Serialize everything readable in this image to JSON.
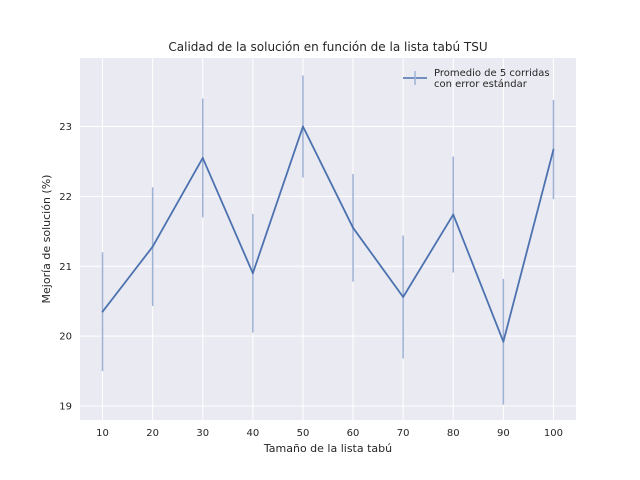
{
  "chart_data": {
    "type": "line",
    "title": "Calidad de la solución en función de la lista tabú TSU",
    "xlabel": "Tamaño de la lista tabú",
    "ylabel": "Mejoría de solución (%)",
    "x": [
      10,
      20,
      30,
      40,
      50,
      60,
      70,
      80,
      90,
      100
    ],
    "x_ticks": [
      "10",
      "20",
      "30",
      "40",
      "50",
      "60",
      "70",
      "80",
      "90",
      "100"
    ],
    "y_ticks": [
      "19",
      "20",
      "21",
      "22",
      "23"
    ],
    "xlim": [
      5.5,
      104.5
    ],
    "ylim": [
      18.8,
      23.98
    ],
    "grid": true,
    "legend_position": "top-right",
    "series": [
      {
        "name": "Promedio de 5 corridas con error estándar",
        "legend_lines": [
          "Promedio de 5 corridas",
          "con error estándar"
        ],
        "values": [
          20.35,
          21.28,
          22.55,
          20.9,
          23.0,
          21.55,
          20.56,
          21.74,
          19.92,
          22.67
        ],
        "errors": [
          0.85,
          0.85,
          0.85,
          0.85,
          0.73,
          0.77,
          0.88,
          0.83,
          0.9,
          0.71
        ]
      }
    ],
    "colors": {
      "line": "#4c72b0",
      "errorbar": "#9fb2d6",
      "plot_background": "#eaeaf2",
      "grid": "#ffffff",
      "text": "#262626"
    }
  }
}
